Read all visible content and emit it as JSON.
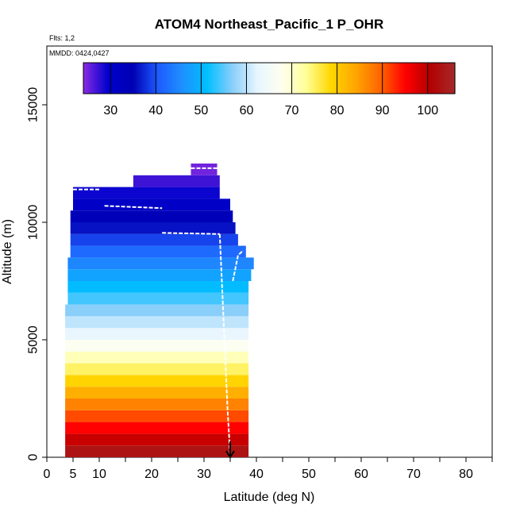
{
  "chart_data": {
    "type": "heatmap",
    "title": "ATOM4 Northeast_Pacific_1 P_OHR",
    "flights_label": "Flts: 1,2",
    "dates_label": "MMDD: 0424,0427",
    "xlabel": "Latitude (deg N)",
    "ylabel": "Altitude (m)",
    "xlim": [
      0,
      85
    ],
    "ylim": [
      0,
      17500
    ],
    "x_tick_values": [
      0,
      5,
      10,
      20,
      30,
      40,
      50,
      60,
      70,
      80
    ],
    "x_tick_labels": [
      "0",
      "5",
      "10",
      "20",
      "30",
      "40",
      "50",
      "60",
      "70",
      "80"
    ],
    "x_minor_ticks": [
      15,
      25,
      35,
      45,
      55,
      65,
      75,
      85
    ],
    "y_tick_values": [
      0,
      5000,
      10000,
      15000
    ],
    "y_tick_labels": [
      "0",
      "5000",
      "10000",
      "15000"
    ],
    "colorbar": {
      "range": [
        24,
        106
      ],
      "tick_values": [
        30,
        40,
        50,
        60,
        70,
        80,
        90,
        100
      ],
      "tick_labels": [
        "30",
        "40",
        "50",
        "60",
        "70",
        "80",
        "90",
        "100"
      ],
      "colors": [
        "#8a2be2",
        "#0000cd",
        "#0000b4",
        "#1e5aff",
        "#1e90ff",
        "#00bfff",
        "#87cefa",
        "#e6f5ff",
        "#fffff0",
        "#ffff96",
        "#ffd700",
        "#ffa500",
        "#ff6400",
        "#ff0000",
        "#b40000",
        "#a52a2a"
      ]
    },
    "profile_bands": [
      {
        "alt": 500,
        "value": 103,
        "lat": [
          3.5,
          38.5
        ]
      },
      {
        "alt": 1000,
        "value": 99,
        "lat": [
          3.5,
          38.5
        ]
      },
      {
        "alt": 1500,
        "value": 95,
        "lat": [
          3.5,
          38.5
        ]
      },
      {
        "alt": 2000,
        "value": 91,
        "lat": [
          3.5,
          38.5
        ]
      },
      {
        "alt": 2500,
        "value": 87,
        "lat": [
          3.5,
          38.5
        ]
      },
      {
        "alt": 3000,
        "value": 83,
        "lat": [
          3.5,
          38.5
        ]
      },
      {
        "alt": 3500,
        "value": 79,
        "lat": [
          3.5,
          38.5
        ]
      },
      {
        "alt": 4000,
        "value": 75,
        "lat": [
          3.5,
          38.5
        ]
      },
      {
        "alt": 4500,
        "value": 71,
        "lat": [
          3.5,
          38.5
        ]
      },
      {
        "alt": 5000,
        "value": 67,
        "lat": [
          3.5,
          38.5
        ]
      },
      {
        "alt": 5500,
        "value": 63,
        "lat": [
          3.5,
          38.5
        ]
      },
      {
        "alt": 6000,
        "value": 60,
        "lat": [
          3.5,
          38.5
        ]
      },
      {
        "alt": 6500,
        "value": 57,
        "lat": [
          3.5,
          38.5
        ]
      },
      {
        "alt": 7000,
        "value": 54,
        "lat": [
          4.0,
          38.5
        ]
      },
      {
        "alt": 7500,
        "value": 51,
        "lat": [
          4.0,
          38.5
        ]
      },
      {
        "alt": 8000,
        "value": 48,
        "lat": [
          4.0,
          39.0
        ]
      },
      {
        "alt": 8500,
        "value": 45,
        "lat": [
          4.0,
          39.5
        ]
      },
      {
        "alt": 9000,
        "value": 42,
        "lat": [
          4.5,
          38.0
        ]
      },
      {
        "alt": 9500,
        "value": 39,
        "lat": [
          4.5,
          36.5
        ]
      },
      {
        "alt": 10000,
        "value": 36,
        "lat": [
          4.5,
          36.0
        ]
      },
      {
        "alt": 10500,
        "value": 34,
        "lat": [
          4.5,
          35.5
        ]
      },
      {
        "alt": 11000,
        "value": 31,
        "lat": [
          5.0,
          35.0
        ]
      },
      {
        "alt": 11500,
        "value": 29,
        "lat": [
          5.0,
          33.0
        ]
      },
      {
        "alt": 12000,
        "value": 27,
        "lat": [
          16.5,
          33.0
        ]
      },
      {
        "alt": 12500,
        "value": 25,
        "lat": [
          27.5,
          32.5
        ]
      }
    ],
    "flight_tracks": [
      {
        "lat": [
          5.0,
          10.0
        ],
        "alt": [
          11400,
          11400
        ]
      },
      {
        "lat": [
          11.0,
          22.0
        ],
        "alt": [
          10700,
          10600
        ]
      },
      {
        "lat": [
          22.0,
          33.0
        ],
        "alt": [
          9550,
          9500
        ]
      },
      {
        "lat": [
          27.5,
          32.5
        ],
        "alt": [
          12300,
          12300
        ]
      },
      {
        "lat": [
          33.0,
          33.5,
          34.0,
          34.5,
          35.0
        ],
        "alt": [
          9500,
          7000,
          4500,
          2000,
          100
        ]
      },
      {
        "lat": [
          35.5,
          36.5,
          37.5
        ],
        "alt": [
          7500,
          8600,
          8800
        ]
      }
    ],
    "marker": {
      "lat": 35.0,
      "alt": 0
    }
  }
}
